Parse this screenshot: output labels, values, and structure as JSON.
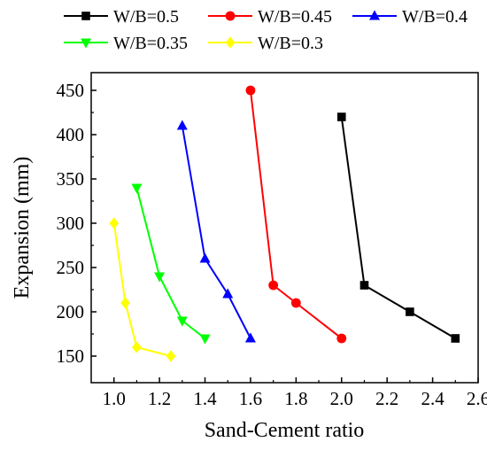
{
  "chart_data": {
    "type": "line",
    "title": "",
    "xlabel": "Sand-Cement ratio",
    "ylabel": "Expansion (mm)",
    "xlim": [
      0.9,
      2.6
    ],
    "ylim": [
      120,
      470
    ],
    "xticks": [
      "1.0",
      "1.2",
      "1.4",
      "1.6",
      "1.8",
      "2.0",
      "2.2",
      "2.4",
      "2.6"
    ],
    "yticks": [
      "150",
      "200",
      "250",
      "300",
      "350",
      "400",
      "450"
    ],
    "grid": false,
    "legend_position": "top",
    "series": [
      {
        "name": "W/B=0.5",
        "color": "#000000",
        "marker": "square",
        "x": [
          2.0,
          2.1,
          2.3,
          2.5
        ],
        "y": [
          420,
          230,
          200,
          170
        ]
      },
      {
        "name": "W/B=0.45",
        "color": "#ff0000",
        "marker": "circle",
        "x": [
          1.6,
          1.7,
          1.8,
          2.0
        ],
        "y": [
          450,
          230,
          210,
          170
        ]
      },
      {
        "name": "W/B=0.4",
        "color": "#0000ff",
        "marker": "triangle-up",
        "x": [
          1.3,
          1.4,
          1.5,
          1.6
        ],
        "y": [
          410,
          260,
          220,
          170
        ]
      },
      {
        "name": "W/B=0.35",
        "color": "#00ff00",
        "marker": "triangle-down",
        "x": [
          1.1,
          1.2,
          1.3,
          1.4
        ],
        "y": [
          340,
          240,
          190,
          170
        ]
      },
      {
        "name": "W/B=0.3",
        "color": "#ffff00",
        "marker": "diamond",
        "x": [
          1.0,
          1.05,
          1.1,
          1.25
        ],
        "y": [
          300,
          210,
          160,
          150
        ]
      }
    ]
  }
}
